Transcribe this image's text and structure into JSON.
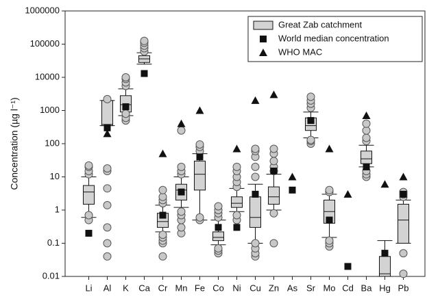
{
  "chart_data": {
    "type": "box",
    "y_label": "Concentration (µg l⁻¹)",
    "log_scale": true,
    "ylim": [
      0.01,
      1000000
    ],
    "yticks": [
      0.01,
      0.1,
      1,
      10,
      100,
      1000,
      10000,
      100000,
      1000000
    ],
    "categories": [
      "Li",
      "Al",
      "K",
      "Ca",
      "Cr",
      "Mn",
      "Fe",
      "Co",
      "Ni",
      "Cu",
      "Zn",
      "As",
      "Sr",
      "Mo",
      "Cd",
      "Ba",
      "Hg",
      "Pb"
    ],
    "legend": "upper right",
    "series": [
      {
        "name": "Great Zab catchment",
        "color": "#d3d3d3",
        "boxes": [
          {
            "whisker_low": 0.6,
            "q1": 1.5,
            "median": 3.5,
            "q3": 5.5,
            "whisker_high": 10,
            "outliers": [
              0.5,
              0.7,
              12,
              15,
              20,
              22
            ]
          },
          {
            "whisker_low": 350,
            "q1": 350,
            "median": 380,
            "q3": 2000,
            "whisker_high": 2000,
            "outliers": [
              0.04,
              0.1,
              0.3,
              1.4,
              4.5,
              15,
              18,
              2200
            ]
          },
          {
            "whisker_low": 700,
            "q1": 900,
            "median": 1500,
            "q3": 2800,
            "whisker_high": 4500,
            "outliers": [
              500,
              600,
              800,
              5500,
              7000,
              9000,
              10000
            ]
          },
          {
            "whisker_low": 25000,
            "q1": 28000,
            "median": 36000,
            "q3": 45000,
            "whisker_high": 55000,
            "outliers": [
              60000,
              75000,
              90000,
              110000,
              125000
            ]
          },
          {
            "whisker_low": 0.22,
            "q1": 0.3,
            "median": 0.45,
            "q3": 0.8,
            "whisker_high": 1.4,
            "outliers": [
              0.04,
              0.1,
              0.12,
              0.15,
              0.18,
              1.6,
              2,
              2.5,
              4
            ]
          },
          {
            "whisker_low": 1.2,
            "q1": 2,
            "median": 4,
            "q3": 6,
            "whisker_high": 10,
            "outliers": [
              0.2,
              0.3,
              0.5,
              0.7,
              0.9,
              12,
              15,
              20,
              250
            ]
          },
          {
            "whisker_low": 0.5,
            "q1": 4,
            "median": 12,
            "q3": 30,
            "whisker_high": 50,
            "outliers": [
              0.5,
              0.6,
              60,
              80,
              95
            ]
          },
          {
            "whisker_low": 0.09,
            "q1": 0.12,
            "median": 0.15,
            "q3": 0.22,
            "whisker_high": 0.5,
            "outliers": [
              0.05,
              0.06,
              0.07,
              0.6,
              0.8,
              1,
              1.3
            ]
          },
          {
            "whisker_low": 0.9,
            "q1": 1.2,
            "median": 1.6,
            "q3": 2.5,
            "whisker_high": 4.5,
            "outliers": [
              0.5,
              0.7,
              5,
              7,
              10,
              15,
              20
            ]
          },
          {
            "whisker_low": 0.1,
            "q1": 0.3,
            "median": 0.6,
            "q3": 2.5,
            "whisker_high": 6,
            "outliers": [
              0.04,
              0.05,
              0.07,
              0.1,
              10,
              20,
              40,
              60,
              70
            ]
          },
          {
            "whisker_low": 1,
            "q1": 1.5,
            "median": 2.5,
            "q3": 5,
            "whisker_high": 12,
            "outliers": [
              0.1,
              0.8,
              15,
              20,
              30,
              50,
              70
            ]
          },
          null,
          {
            "whisker_low": 150,
            "q1": 250,
            "median": 350,
            "q3": 600,
            "whisker_high": 900,
            "outliers": [
              100,
              120,
              130,
              1200,
              1600,
              2000,
              2600
            ]
          },
          {
            "whisker_low": 0.15,
            "q1": 0.4,
            "median": 0.9,
            "q3": 2,
            "whisker_high": 3,
            "outliers": [
              0.08,
              0.1,
              0.12,
              3.5,
              4
            ]
          },
          null,
          {
            "whisker_low": 20,
            "q1": 25,
            "median": 35,
            "q3": 60,
            "whisker_high": 90,
            "outliers": [
              10,
              12,
              15,
              120,
              150,
              250,
              400
            ]
          },
          {
            "whisker_low": 0.01,
            "q1": 0.01,
            "median": 0.012,
            "q3": 0.04,
            "whisker_high": 0.12,
            "outliers": []
          },
          {
            "whisker_low": 0.1,
            "q1": 0.1,
            "median": 0.5,
            "q3": 1.5,
            "whisker_high": 2,
            "outliers": [
              0.012,
              0.05,
              2.5,
              3,
              3.5
            ]
          }
        ]
      },
      {
        "name": "World median concentration",
        "color": "#111111",
        "marker": "square",
        "values": [
          0.2,
          300,
          1300,
          13000,
          0.7,
          3.5,
          40,
          0.3,
          0.3,
          3,
          15,
          4,
          500,
          0.5,
          0.02,
          20,
          0.05,
          3
        ]
      },
      {
        "name": "WHO MAC",
        "color": "#111111",
        "marker": "triangle",
        "values": [
          null,
          200,
          null,
          null,
          50,
          400,
          1000,
          null,
          70,
          2000,
          3000,
          10,
          null,
          70,
          3,
          700,
          6,
          10
        ]
      }
    ]
  }
}
